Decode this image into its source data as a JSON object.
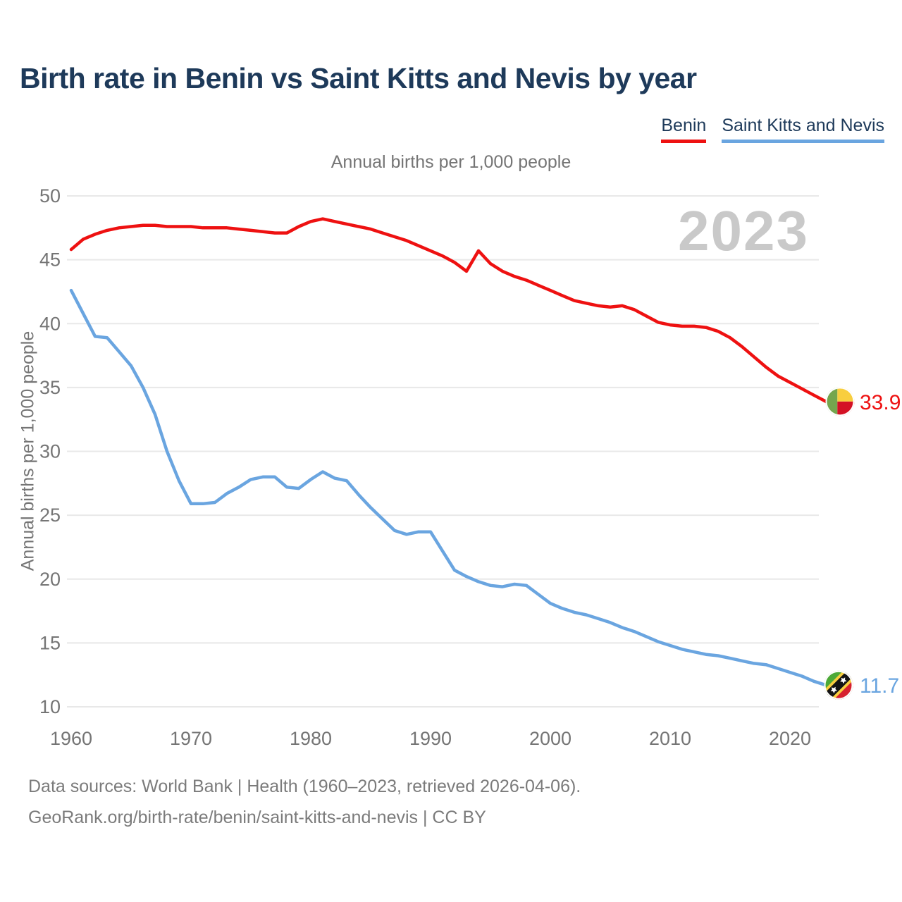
{
  "header": {
    "title": "Birth rate in Benin vs Saint Kitts and Nevis by year"
  },
  "legend": {
    "items": [
      {
        "label": "Benin",
        "color": "#ee1111"
      },
      {
        "label": "Saint Kitts and Nevis",
        "color": "#6aa5e0"
      }
    ]
  },
  "subtitle": "Annual births per 1,000 people",
  "y_axis_title": "Annual births per 1,000 people",
  "watermark": "2023",
  "footer": {
    "line1": "Data sources: World Bank | Health (1960–2023, retrieved 2026-04-06).",
    "line2": "GeoRank.org/birth-rate/benin/saint-kitts-and-nevis | CC BY"
  },
  "colors": {
    "title": "#1e3a5a",
    "axis_text": "#757575",
    "gridline": "#e8e8e8",
    "watermark": "#c9c9c9",
    "footer_text": "#7b7b7b"
  },
  "chart_data": {
    "type": "line",
    "title": "Birth rate in Benin vs Saint Kitts and Nevis by year",
    "subtitle": "Annual births per 1,000 people",
    "ylabel": "Annual births per 1,000 people",
    "x_range": [
      1960,
      2023
    ],
    "ylim": [
      10,
      50
    ],
    "yticks": [
      10,
      15,
      20,
      25,
      30,
      35,
      40,
      45,
      50
    ],
    "xticks": [
      1960,
      1970,
      1980,
      1990,
      2000,
      2010,
      2020
    ],
    "grid": "horizontal",
    "legend_position": "top-right",
    "series": [
      {
        "name": "Benin",
        "color": "#ee1111",
        "end_label": "33.9",
        "flag": "benin",
        "values": [
          45.8,
          46.6,
          47.0,
          47.3,
          47.5,
          47.6,
          47.7,
          47.7,
          47.6,
          47.6,
          47.6,
          47.5,
          47.5,
          47.5,
          47.4,
          47.3,
          47.2,
          47.1,
          47.1,
          47.6,
          48.0,
          48.2,
          48.0,
          47.8,
          47.6,
          47.4,
          47.1,
          46.8,
          46.5,
          46.1,
          45.7,
          45.3,
          44.8,
          44.1,
          45.7,
          44.7,
          44.1,
          43.7,
          43.4,
          43.0,
          42.6,
          42.2,
          41.8,
          41.6,
          41.4,
          41.3,
          41.4,
          41.1,
          40.6,
          40.1,
          39.9,
          39.8,
          39.8,
          39.7,
          39.4,
          38.9,
          38.2,
          37.4,
          36.6,
          35.9,
          35.4,
          34.9,
          34.4,
          33.9
        ]
      },
      {
        "name": "Saint Kitts and Nevis",
        "color": "#6aa5e0",
        "end_label": "11.7",
        "flag": "saint-kitts-and-nevis",
        "values": [
          42.6,
          40.8,
          39.0,
          38.9,
          37.8,
          36.7,
          35.0,
          32.9,
          30.0,
          27.7,
          25.9,
          25.9,
          26.0,
          26.7,
          27.2,
          27.8,
          28.0,
          28.0,
          27.2,
          27.1,
          27.8,
          28.4,
          27.9,
          27.7,
          26.6,
          25.6,
          24.7,
          23.8,
          23.5,
          23.7,
          23.7,
          22.2,
          20.7,
          20.2,
          19.8,
          19.5,
          19.4,
          19.6,
          19.5,
          18.8,
          18.1,
          17.7,
          17.4,
          17.2,
          16.9,
          16.6,
          16.2,
          15.9,
          15.5,
          15.1,
          14.8,
          14.5,
          14.3,
          14.1,
          14.0,
          13.8,
          13.6,
          13.4,
          13.3,
          13.0,
          12.7,
          12.4,
          12.0,
          11.7
        ]
      }
    ],
    "flag_colors": {
      "benin": {
        "green": "#74a64e",
        "yellow": "#f8ce3e",
        "red": "#d41125"
      },
      "saint_kitts_and_nevis": {
        "green": "#4ca937",
        "red": "#d6202e",
        "black": "#141414",
        "yellow": "#f8ce3e",
        "white": "#ffffff"
      }
    }
  }
}
